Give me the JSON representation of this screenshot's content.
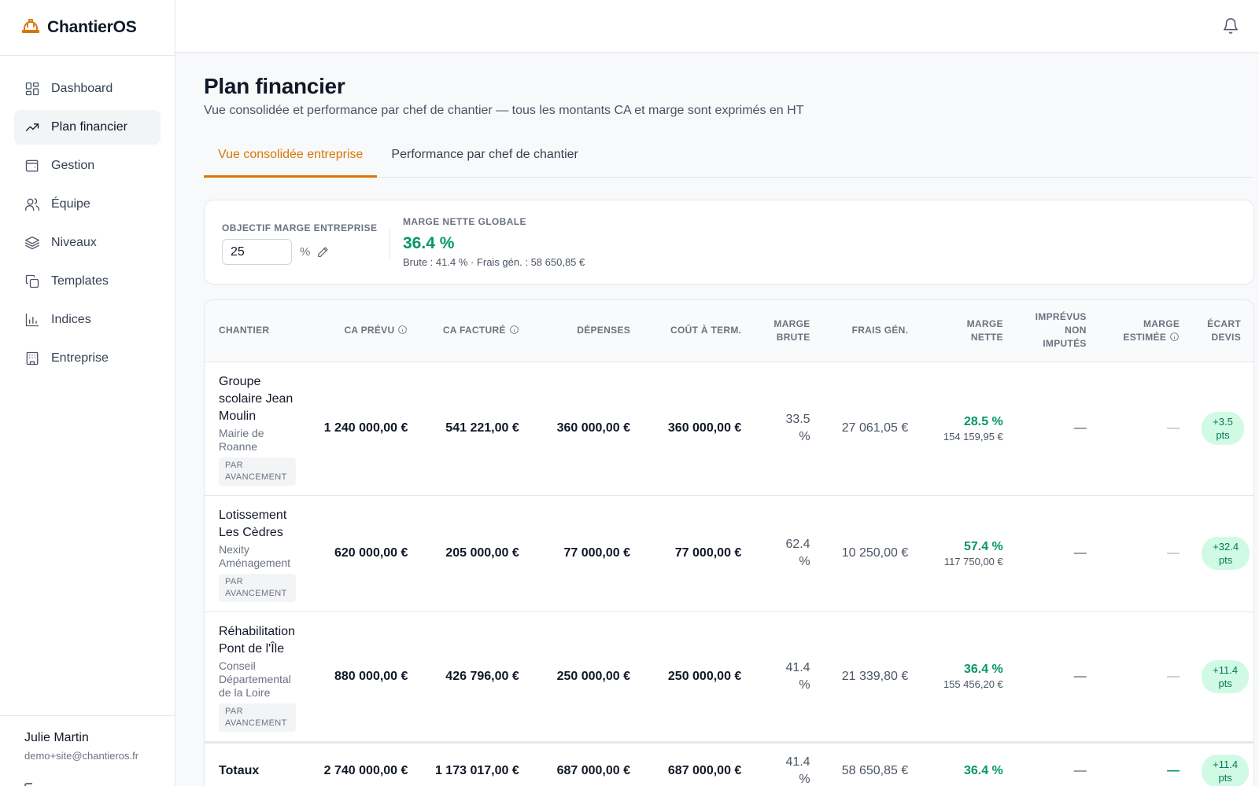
{
  "app": {
    "name": "ChantierOS",
    "logo_icon": "hard-hat-icon",
    "accent": "#d97706"
  },
  "sidebar": {
    "items": [
      {
        "label": "Dashboard",
        "icon": "dashboard-icon"
      },
      {
        "label": "Plan financier",
        "icon": "trending-up-icon",
        "active": true
      },
      {
        "label": "Gestion",
        "icon": "wallet-icon"
      },
      {
        "label": "Équipe",
        "icon": "users-icon"
      },
      {
        "label": "Niveaux",
        "icon": "layers-icon"
      },
      {
        "label": "Templates",
        "icon": "copy-icon"
      },
      {
        "label": "Indices",
        "icon": "bar-chart-icon"
      },
      {
        "label": "Entreprise",
        "icon": "building-icon"
      }
    ],
    "user": {
      "name": "Julie Martin",
      "email": "demo+site@chantieros.fr"
    }
  },
  "topbar": {
    "bell_icon": "bell-icon"
  },
  "page": {
    "title": "Plan financier",
    "subtitle": "Vue consolidée et performance par chef de chantier — tous les montants CA et marge sont exprimés en HT"
  },
  "tabs": [
    {
      "label": "Vue consolidée entreprise",
      "active": true
    },
    {
      "label": "Performance par chef de chantier",
      "active": false
    }
  ],
  "kpi": {
    "target_label": "OBJECTIF MARGE ENTREPRISE",
    "target_value": "25",
    "target_unit": "%",
    "net_label": "MARGE NETTE GLOBALE",
    "net_value": "36.4 %",
    "net_detail": "Brute : 41.4 % · Frais gén. : 58 650,85 €"
  },
  "table": {
    "headers": {
      "chantier": "CHANTIER",
      "ca_prevu": "CA PRÉVU",
      "ca_facture": "CA FACTURÉ",
      "depenses": "DÉPENSES",
      "cout_term": "COÛT À TERM.",
      "marge_brute_1": "MARGE",
      "marge_brute_2": "BRUTE",
      "frais_gen": "FRAIS GÉN.",
      "marge_nette_1": "MARGE",
      "marge_nette_2": "NETTE",
      "imprevus_1": "IMPRÉVUS",
      "imprevus_2": "NON",
      "imprevus_3": "IMPUTÉS",
      "marge_est_1": "MARGE",
      "marge_est_2": "ESTIMÉE",
      "ecart_1": "ÉCART",
      "ecart_2": "DEVIS"
    },
    "rows": [
      {
        "name": "Groupe scolaire Jean Moulin",
        "client": "Mairie de Roanne",
        "tag": "PAR AVANCEMENT",
        "ca_prevu": "1 240 000,00 €",
        "ca_facture": "541 221,00 €",
        "depenses": "360 000,00 €",
        "cout_term": "360 000,00 €",
        "marge_brute_val": "33.5",
        "marge_brute_unit": "%",
        "frais_gen": "27 061,05 €",
        "marge_nette_pct": "28.5 %",
        "marge_nette_amt": "154 159,95 €",
        "imprevus": "—",
        "marge_est": "—",
        "ecart_val": "+3.5",
        "ecart_unit": "pts"
      },
      {
        "name": "Lotissement Les Cèdres",
        "client": "Nexity Aménagement",
        "tag": "PAR AVANCEMENT",
        "ca_prevu": "620 000,00 €",
        "ca_facture": "205 000,00 €",
        "depenses": "77 000,00 €",
        "cout_term": "77 000,00 €",
        "marge_brute_val": "62.4",
        "marge_brute_unit": "%",
        "frais_gen": "10 250,00 €",
        "marge_nette_pct": "57.4 %",
        "marge_nette_amt": "117 750,00 €",
        "imprevus": "—",
        "marge_est": "—",
        "ecart_val": "+32.4",
        "ecart_unit": "pts"
      },
      {
        "name": "Réhabilitation Pont de l'Île",
        "client": "Conseil Départemental de la Loire",
        "tag": "PAR AVANCEMENT",
        "ca_prevu": "880 000,00 €",
        "ca_facture": "426 796,00 €",
        "depenses": "250 000,00 €",
        "cout_term": "250 000,00 €",
        "marge_brute_val": "41.4",
        "marge_brute_unit": "%",
        "frais_gen": "21 339,80 €",
        "marge_nette_pct": "36.4 %",
        "marge_nette_amt": "155 456,20 €",
        "imprevus": "—",
        "marge_est": "—",
        "ecart_val": "+11.4",
        "ecart_unit": "pts"
      }
    ],
    "totals": {
      "label": "Totaux",
      "ca_prevu": "2 740 000,00 €",
      "ca_facture": "1 173 017,00 €",
      "depenses": "687 000,00 €",
      "cout_term": "687 000,00 €",
      "marge_brute_val": "41.4",
      "marge_brute_unit": "%",
      "frais_gen": "58 650,85 €",
      "marge_nette_pct": "36.4 %",
      "imprevus": "—",
      "marge_est": "—",
      "ecart_val": "+11.4",
      "ecart_unit": "pts"
    }
  }
}
